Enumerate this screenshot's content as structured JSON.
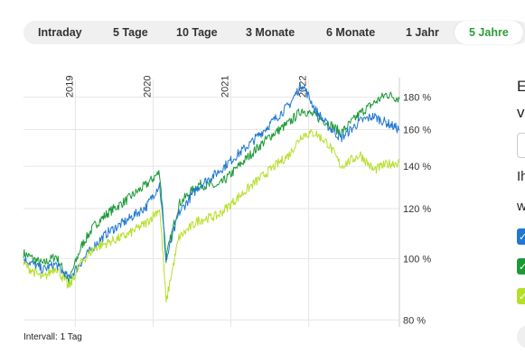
{
  "tabs": [
    {
      "label": "Intraday",
      "active": false
    },
    {
      "label": "5 Tage",
      "active": false
    },
    {
      "label": "10 Tage",
      "active": false
    },
    {
      "label": "3 Monate",
      "active": false
    },
    {
      "label": "6 Monate",
      "active": false
    },
    {
      "label": "1 Jahr",
      "active": false
    },
    {
      "label": "5 Jahre",
      "active": true
    }
  ],
  "footer": {
    "interval_label": "Intervall: 1 Tag"
  },
  "right_panel": {
    "text_1": "E",
    "text_2": "v",
    "text_3": "Ih",
    "text_4": "w"
  },
  "colors": {
    "active_tab": "#2e9c3a",
    "series_blue": "#1f78d1",
    "series_green": "#1b9a36",
    "series_lime": "#b6df2a"
  },
  "chart_data": {
    "type": "line",
    "title": "",
    "xlabel": "",
    "ylabel": "",
    "scale": "log",
    "x_ticks": [
      "2019",
      "2020",
      "2021",
      "2022"
    ],
    "y_ticks": [
      80,
      100,
      120,
      140,
      160,
      180
    ],
    "y_tick_labels": [
      "80 %",
      "100 %",
      "120 %",
      "140 %",
      "160 %",
      "180 %"
    ],
    "ylim": [
      78,
      192
    ],
    "xlim": [
      "2018-05",
      "2023-03"
    ],
    "grid": true,
    "series": [
      {
        "color": "#1b9a36",
        "x": [
          "2018-05",
          "2018-08",
          "2018-10",
          "2018-12",
          "2019-02",
          "2019-04",
          "2019-06",
          "2019-09",
          "2019-12",
          "2020-02",
          "2020-03",
          "2020-05",
          "2020-08",
          "2020-11",
          "2021-01",
          "2021-04",
          "2021-07",
          "2021-10",
          "2021-12",
          "2022-02",
          "2022-04",
          "2022-06",
          "2022-09",
          "2022-11",
          "2023-01",
          "2023-03"
        ],
        "y": [
          102,
          98,
          101,
          92,
          105,
          113,
          118,
          124,
          131,
          137,
          100,
          122,
          131,
          130,
          136,
          146,
          156,
          164,
          172,
          168,
          164,
          158,
          170,
          176,
          182,
          179
        ]
      },
      {
        "color": "#1f78d1",
        "x": [
          "2018-05",
          "2018-08",
          "2018-10",
          "2018-12",
          "2019-02",
          "2019-04",
          "2019-06",
          "2019-09",
          "2019-12",
          "2020-02",
          "2020-03",
          "2020-05",
          "2020-08",
          "2020-11",
          "2021-01",
          "2021-04",
          "2021-07",
          "2021-10",
          "2021-12",
          "2022-02",
          "2022-04",
          "2022-06",
          "2022-09",
          "2022-11",
          "2023-01",
          "2023-03"
        ],
        "y": [
          100,
          96,
          98,
          93,
          99,
          105,
          110,
          115,
          121,
          131,
          99,
          118,
          130,
          137,
          143,
          152,
          163,
          175,
          189,
          172,
          162,
          155,
          165,
          168,
          164,
          160
        ]
      },
      {
        "color": "#b6df2a",
        "x": [
          "2018-05",
          "2018-08",
          "2018-10",
          "2018-12",
          "2019-02",
          "2019-04",
          "2019-06",
          "2019-09",
          "2019-12",
          "2020-02",
          "2020-03",
          "2020-05",
          "2020-08",
          "2020-11",
          "2021-01",
          "2021-04",
          "2021-07",
          "2021-10",
          "2021-12",
          "2022-02",
          "2022-04",
          "2022-06",
          "2022-09",
          "2022-11",
          "2023-01",
          "2023-03"
        ],
        "y": [
          98,
          93,
          97,
          90,
          99,
          104,
          106,
          109,
          114,
          120,
          85,
          108,
          115,
          117,
          122,
          130,
          138,
          146,
          157,
          158,
          152,
          140,
          146,
          138,
          141,
          142
        ]
      }
    ]
  }
}
